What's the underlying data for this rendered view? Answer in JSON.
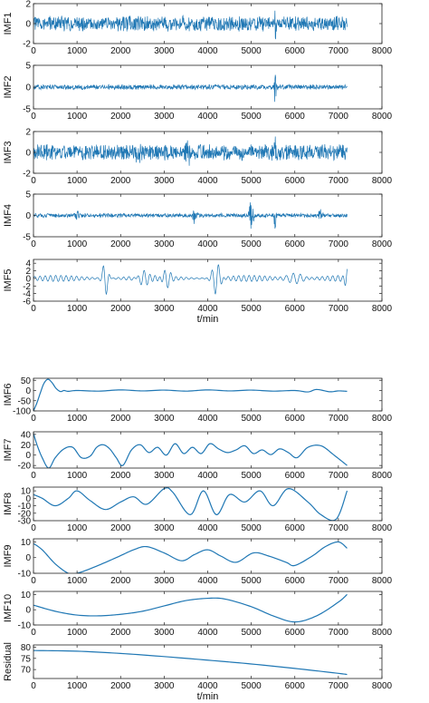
{
  "chart_data": [
    {
      "type": "line",
      "ylabel": "IMF1",
      "xlabel": "",
      "xlim": [
        0,
        8000
      ],
      "ylim": [
        -2,
        2
      ],
      "xticks": [
        "0",
        "1000",
        "2000",
        "3000",
        "4000",
        "5000",
        "6000",
        "7000",
        "8000"
      ],
      "yticks": [
        "2",
        "0",
        "-2"
      ],
      "color": "#1f77b4",
      "series": [
        {
          "x_start": 0,
          "x_end": 7200,
          "noise_amplitude": 0.8,
          "bursts": [
            {
              "x": 5550,
              "amplitude": 2.2,
              "width": 20
            }
          ]
        }
      ]
    },
    {
      "type": "line",
      "ylabel": "IMF2",
      "xlabel": "",
      "xlim": [
        0,
        8000
      ],
      "ylim": [
        -5,
        5
      ],
      "xticks": [
        "0",
        "1000",
        "2000",
        "3000",
        "4000",
        "5000",
        "6000",
        "7000",
        "8000"
      ],
      "yticks": [
        "5",
        "0",
        "-5"
      ],
      "color": "#1f77b4",
      "series": [
        {
          "x_start": 0,
          "x_end": 7200,
          "noise_amplitude": 0.6,
          "bursts": [
            {
              "x": 5550,
              "amplitude": 4.0,
              "width": 25
            }
          ]
        }
      ]
    },
    {
      "type": "line",
      "ylabel": "IMF3",
      "xlabel": "",
      "xlim": [
        0,
        8000
      ],
      "ylim": [
        -2,
        2
      ],
      "xticks": [
        "0",
        "1000",
        "2000",
        "3000",
        "4000",
        "5000",
        "6000",
        "7000",
        "8000"
      ],
      "yticks": [
        "2",
        "0",
        "-2"
      ],
      "color": "#1f77b4",
      "series": [
        {
          "x_start": 0,
          "x_end": 7200,
          "noise_amplitude": 0.8,
          "bursts": [
            {
              "x": 2400,
              "amplitude": 1.3,
              "width": 60
            },
            {
              "x": 3500,
              "amplitude": 1.3,
              "width": 120
            },
            {
              "x": 5550,
              "amplitude": 2.2,
              "width": 20
            }
          ]
        }
      ]
    },
    {
      "type": "line",
      "ylabel": "IMF4",
      "xlabel": "",
      "xlim": [
        0,
        8000
      ],
      "ylim": [
        -5,
        5
      ],
      "xticks": [
        "0",
        "1000",
        "2000",
        "3000",
        "4000",
        "5000",
        "6000",
        "7000",
        "8000"
      ],
      "yticks": [
        "5",
        "0",
        "-5"
      ],
      "color": "#1f77b4",
      "series": [
        {
          "x_start": 0,
          "x_end": 7200,
          "noise_amplitude": 0.5,
          "bursts": [
            {
              "x": 1000,
              "amplitude": 1.3,
              "width": 60
            },
            {
              "x": 3700,
              "amplitude": 1.8,
              "width": 60
            },
            {
              "x": 5000,
              "amplitude": 4.6,
              "width": 50
            },
            {
              "x": 5550,
              "amplitude": 3.2,
              "width": 30
            },
            {
              "x": 6600,
              "amplitude": 1.5,
              "width": 60
            }
          ]
        }
      ]
    },
    {
      "type": "line",
      "ylabel": "IMF5",
      "xlabel": "t/min",
      "xlim": [
        0,
        8000
      ],
      "ylim": [
        -6,
        5
      ],
      "xticks": [
        "0",
        "1000",
        "2000",
        "3000",
        "4000",
        "5000",
        "6000",
        "7000",
        "8000"
      ],
      "yticks": [
        "4",
        "2",
        "0",
        "-2",
        "-4",
        "-6"
      ],
      "color": "#1f77b4",
      "series": [
        {
          "x_start": 0,
          "x_end": 7200,
          "wave_period": 120,
          "base_amplitude": 0.8,
          "bursts": [
            {
              "x": 1650,
              "amplitude": 4.5,
              "width": 80
            },
            {
              "x": 2500,
              "amplitude": 1.6,
              "width": 150
            },
            {
              "x": 3050,
              "amplitude": 2.0,
              "width": 120
            },
            {
              "x": 4200,
              "amplitude": 4.0,
              "width": 120
            },
            {
              "x": 6000,
              "amplitude": 1.6,
              "width": 200
            },
            {
              "x": 7200,
              "amplitude": 3.0,
              "width": 60
            }
          ]
        }
      ]
    },
    {
      "type": "line",
      "ylabel": "IMF6",
      "xlabel": "",
      "xlim": [
        0,
        8000
      ],
      "ylim": [
        -100,
        60
      ],
      "xticks": [
        "0",
        "1000",
        "2000",
        "3000",
        "4000",
        "5000",
        "6000",
        "7000",
        "8000"
      ],
      "yticks": [
        "50",
        "0",
        "-50",
        "-100"
      ],
      "color": "#1f77b4",
      "series": [
        {
          "x": [
            0,
            80,
            160,
            240,
            330,
            420,
            520,
            620,
            700,
            800,
            1000,
            1500,
            2000,
            2500,
            3000,
            3500,
            4000,
            4500,
            5000,
            5500,
            6000,
            6300,
            6500,
            6800,
            7000,
            7200
          ],
          "y": [
            -100,
            -60,
            -10,
            35,
            55,
            40,
            10,
            -5,
            0,
            -4,
            0,
            -3,
            3,
            -2,
            2,
            -3,
            3,
            -2,
            2,
            -3,
            0,
            -7,
            5,
            -6,
            -2,
            -4
          ]
        }
      ]
    },
    {
      "type": "line",
      "ylabel": "IMF7",
      "xlabel": "",
      "xlim": [
        0,
        8000
      ],
      "ylim": [
        -25,
        45
      ],
      "xticks": [
        "0",
        "1000",
        "2000",
        "3000",
        "4000",
        "5000",
        "6000",
        "7000",
        "8000"
      ],
      "yticks": [
        "40",
        "20",
        "0",
        "-20"
      ],
      "color": "#1f77b4",
      "series": [
        {
          "x": [
            0,
            80,
            200,
            350,
            500,
            700,
            900,
            1100,
            1300,
            1450,
            1600,
            1750,
            1900,
            2050,
            2250,
            2450,
            2650,
            2850,
            3050,
            3250,
            3450,
            3650,
            3850,
            4050,
            4250,
            4450,
            4650,
            4850,
            5050,
            5250,
            5450,
            5650,
            5850,
            6050,
            6300,
            6600,
            6900,
            7200
          ],
          "y": [
            42,
            20,
            -5,
            -25,
            -5,
            12,
            15,
            -5,
            -2,
            15,
            20,
            12,
            -5,
            -20,
            10,
            20,
            5,
            15,
            0,
            22,
            3,
            15,
            3,
            22,
            12,
            5,
            10,
            18,
            3,
            10,
            1,
            12,
            5,
            -5,
            15,
            18,
            0,
            -20
          ]
        }
      ]
    },
    {
      "type": "line",
      "ylabel": "IMF8",
      "xlabel": "",
      "xlim": [
        0,
        8000
      ],
      "ylim": [
        -30,
        15
      ],
      "xticks": [
        "0",
        "1000",
        "2000",
        "3000",
        "4000",
        "5000",
        "6000",
        "7000",
        "8000"
      ],
      "yticks": [
        "10",
        "0",
        "-10",
        "-20",
        "-30"
      ],
      "color": "#1f77b4",
      "series": [
        {
          "x": [
            0,
            200,
            500,
            800,
            1000,
            1300,
            1650,
            2000,
            2300,
            2600,
            3000,
            3200,
            3600,
            3900,
            4200,
            4500,
            4850,
            5200,
            5500,
            5850,
            6300,
            6600,
            6950,
            7200
          ],
          "y": [
            5,
            0,
            -10,
            0,
            10,
            -3,
            -15,
            -5,
            2,
            -8,
            13,
            8,
            -22,
            10,
            -22,
            5,
            -5,
            10,
            -10,
            13,
            -5,
            -22,
            -28,
            10
          ]
        }
      ]
    },
    {
      "type": "line",
      "ylabel": "IMF9",
      "xlabel": "",
      "xlim": [
        0,
        8000
      ],
      "ylim": [
        -10,
        12
      ],
      "xticks": [
        "0",
        "1000",
        "2000",
        "3000",
        "4000",
        "5000",
        "6000",
        "7000",
        "8000"
      ],
      "yticks": [
        "10",
        "0",
        "-10"
      ],
      "color": "#1f77b4",
      "series": [
        {
          "x": [
            0,
            200,
            500,
            800,
            1000,
            1400,
            1900,
            2300,
            2600,
            3000,
            3400,
            3700,
            4000,
            4300,
            4650,
            5050,
            5400,
            5800,
            6000,
            6400,
            6700,
            7000,
            7200
          ],
          "y": [
            9,
            5,
            -4,
            -10,
            -10,
            -6,
            0,
            5,
            7,
            3,
            -2,
            2,
            5,
            1,
            -3,
            3,
            1,
            -3,
            -5,
            1,
            7,
            10,
            6
          ]
        }
      ]
    },
    {
      "type": "line",
      "ylabel": "IMF10",
      "xlabel": "",
      "xlim": [
        0,
        8000
      ],
      "ylim": [
        -10,
        12
      ],
      "xticks": [
        "0",
        "1000",
        "2000",
        "3000",
        "4000",
        "5000",
        "6000",
        "7000",
        "8000"
      ],
      "yticks": [
        "10",
        "0",
        "-10"
      ],
      "color": "#1f77b4",
      "series": [
        {
          "x": [
            0,
            500,
            1000,
            1500,
            2000,
            2500,
            3000,
            3500,
            4000,
            4400,
            5000,
            5500,
            6000,
            6500,
            7000,
            7200
          ],
          "y": [
            3,
            -1,
            -3.5,
            -4,
            -3,
            -1,
            2.5,
            6,
            7.5,
            7,
            2,
            -4,
            -8,
            -4,
            5,
            10
          ]
        }
      ]
    },
    {
      "type": "line",
      "ylabel": "Residual",
      "xlabel": "t/min",
      "xlim": [
        0,
        8000
      ],
      "ylim": [
        66,
        81
      ],
      "xticks": [
        "0",
        "1000",
        "2000",
        "3000",
        "4000",
        "5000",
        "6000",
        "7000",
        "8000"
      ],
      "yticks": [
        "80",
        "75",
        "70"
      ],
      "color": "#1f77b4",
      "series": [
        {
          "x": [
            0,
            1000,
            2000,
            3000,
            4000,
            5000,
            6000,
            7000,
            7200
          ],
          "y": [
            78.5,
            78.2,
            77.2,
            75.8,
            74.2,
            72.5,
            70.5,
            68.3,
            67.8
          ]
        }
      ]
    }
  ]
}
